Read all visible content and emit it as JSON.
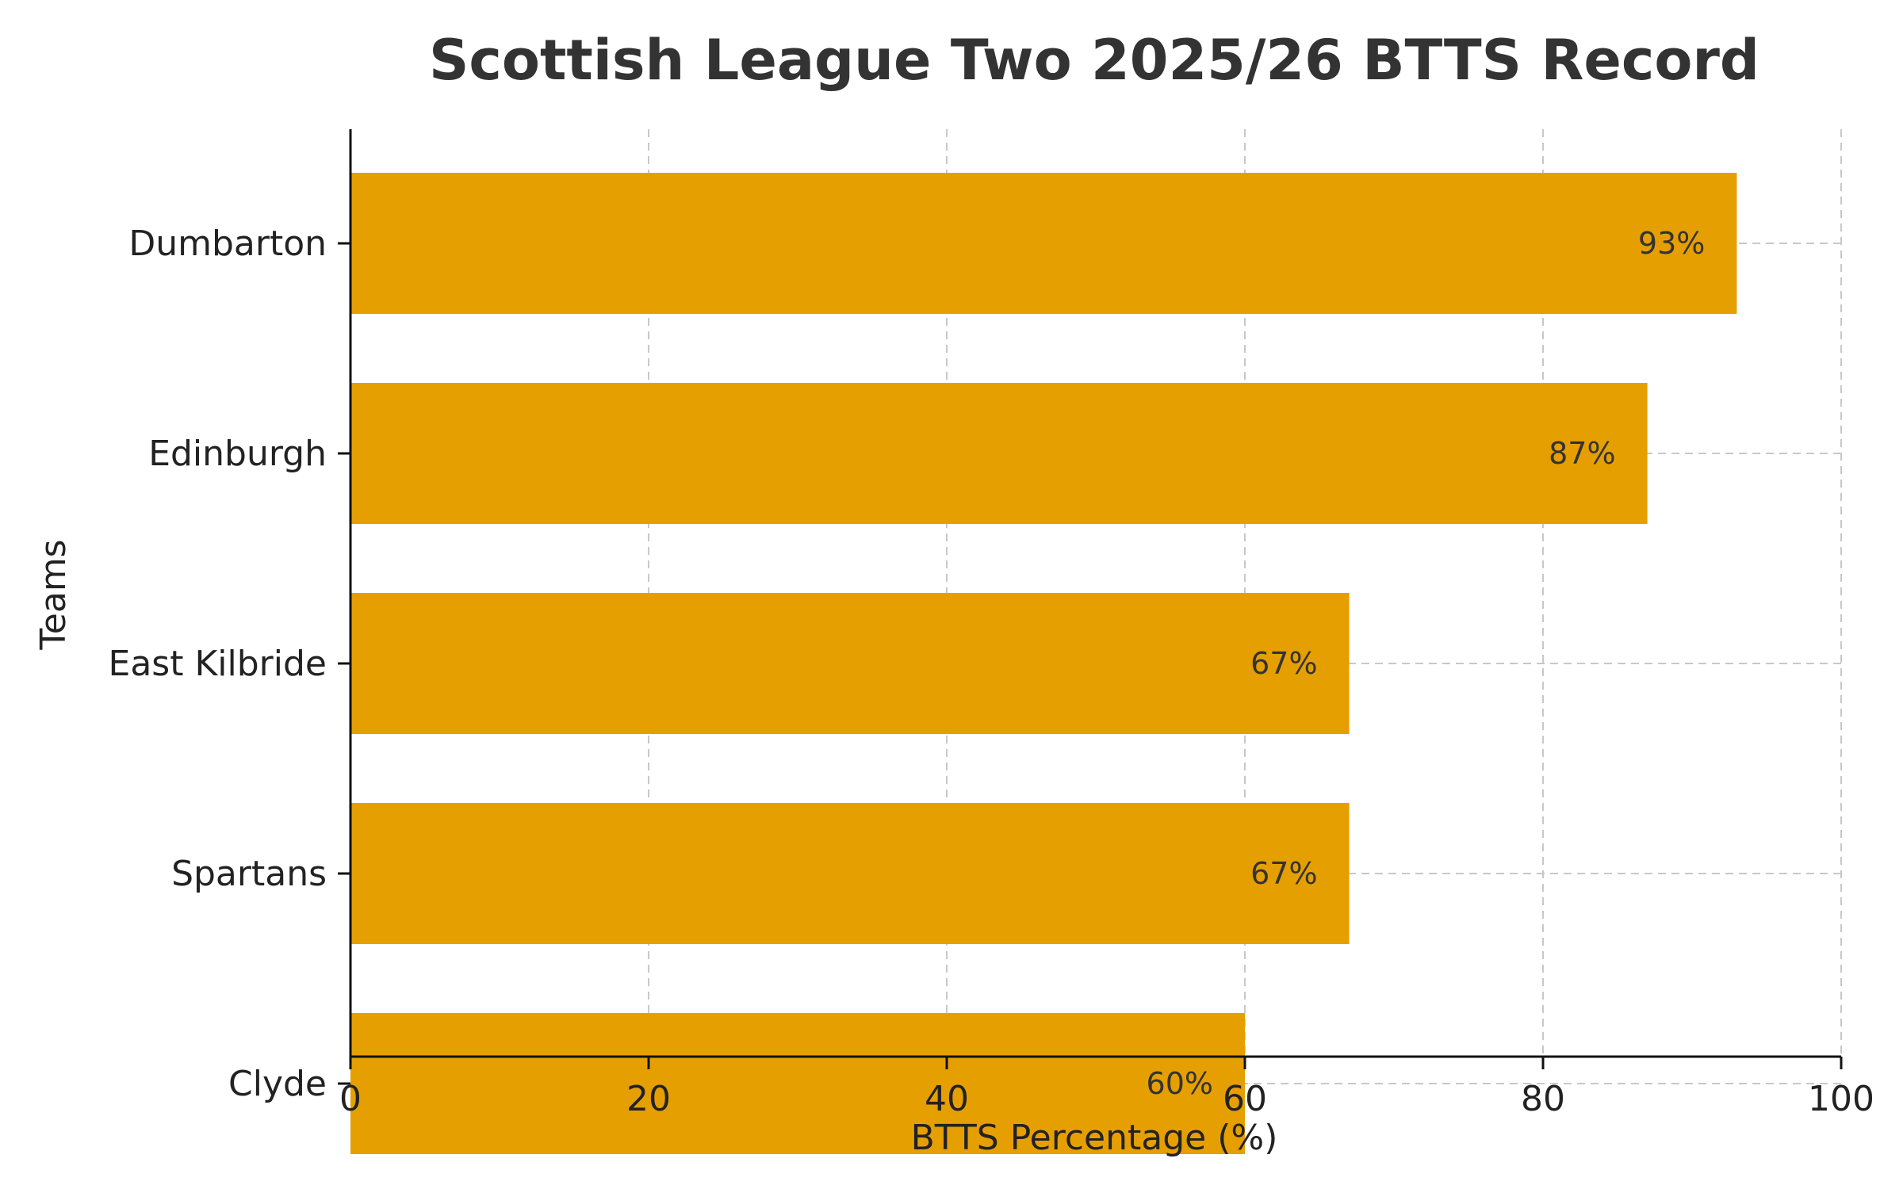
{
  "chart_data": {
    "type": "bar",
    "orientation": "horizontal",
    "title": "Scottish League Two 2025/26 BTTS Record",
    "xlabel": "BTTS Percentage (%)",
    "ylabel": "Teams",
    "categories": [
      "Dumbarton",
      "Edinburgh",
      "East Kilbride",
      "Spartans",
      "Clyde"
    ],
    "values": [
      93,
      87,
      67,
      67,
      60
    ],
    "data_labels": [
      "93%",
      "87%",
      "67%",
      "67%",
      "60%"
    ],
    "xlim": [
      0,
      100
    ],
    "xticks": [
      0,
      20,
      40,
      60,
      80,
      100
    ],
    "grid": true,
    "bar_color": "#E69F00"
  }
}
